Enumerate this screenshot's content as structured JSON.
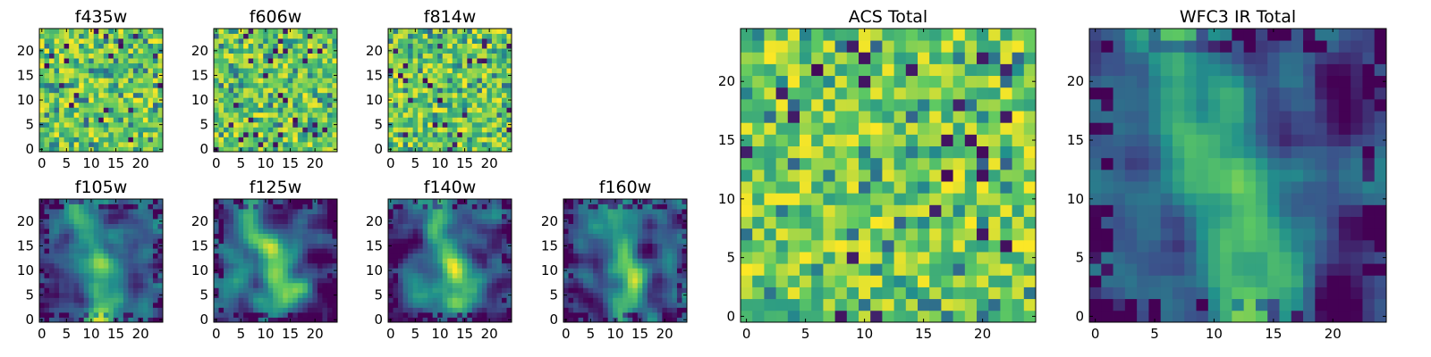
{
  "chart_data": [
    {
      "type": "heatmap",
      "title": "f435w",
      "grid": "24x24",
      "xlim": [
        0,
        24
      ],
      "ylim": [
        0,
        24
      ],
      "xticks": [
        0,
        5,
        10,
        15,
        20
      ],
      "yticks": [
        0,
        5,
        10,
        15,
        20
      ],
      "pattern": "noise",
      "seed": 11
    },
    {
      "type": "heatmap",
      "title": "f606w",
      "grid": "24x24",
      "xlim": [
        0,
        24
      ],
      "ylim": [
        0,
        24
      ],
      "xticks": [
        0,
        5,
        10,
        15,
        20
      ],
      "yticks": [
        0,
        5,
        10,
        15,
        20
      ],
      "pattern": "noise",
      "seed": 23
    },
    {
      "type": "heatmap",
      "title": "f814w",
      "grid": "24x24",
      "xlim": [
        0,
        24
      ],
      "ylim": [
        0,
        24
      ],
      "xticks": [
        0,
        5,
        10,
        15,
        20
      ],
      "yticks": [
        0,
        5,
        10,
        15,
        20
      ],
      "pattern": "noise",
      "seed": 37
    },
    {
      "type": "heatmap",
      "title": "f105w",
      "grid": "24x24",
      "xlim": [
        0,
        24
      ],
      "ylim": [
        0,
        24
      ],
      "xticks": [
        0,
        5,
        10,
        15,
        20
      ],
      "yticks": [
        0,
        5,
        10,
        15,
        20
      ],
      "pattern": "smooth",
      "seed": 41
    },
    {
      "type": "heatmap",
      "title": "f125w",
      "grid": "24x24",
      "xlim": [
        0,
        24
      ],
      "ylim": [
        0,
        24
      ],
      "xticks": [
        0,
        5,
        10,
        15,
        20
      ],
      "yticks": [
        0,
        5,
        10,
        15,
        20
      ],
      "pattern": "smooth",
      "seed": 53
    },
    {
      "type": "heatmap",
      "title": "f140w",
      "grid": "24x24",
      "xlim": [
        0,
        24
      ],
      "ylim": [
        0,
        24
      ],
      "xticks": [
        0,
        5,
        10,
        15,
        20
      ],
      "yticks": [
        0,
        5,
        10,
        15,
        20
      ],
      "pattern": "smooth",
      "seed": 67
    },
    {
      "type": "heatmap",
      "title": "f160w",
      "grid": "24x24",
      "xlim": [
        0,
        24
      ],
      "ylim": [
        0,
        24
      ],
      "xticks": [
        0,
        5,
        10,
        15,
        20
      ],
      "yticks": [
        0,
        5,
        10,
        15,
        20
      ],
      "pattern": "smooth",
      "seed": 79
    },
    {
      "type": "heatmap",
      "title": "ACS Total",
      "grid": "24x24",
      "xlim": [
        0,
        24
      ],
      "ylim": [
        0,
        24
      ],
      "xticks": [
        0,
        5,
        10,
        15,
        20
      ],
      "yticks": [
        0,
        5,
        10,
        15,
        20
      ],
      "pattern": "noise",
      "seed": 97
    },
    {
      "type": "heatmap",
      "title": "WFC3 IR Total",
      "grid": "24x24",
      "xlim": [
        0,
        24
      ],
      "ylim": [
        0,
        24
      ],
      "xticks": [
        0,
        5,
        10,
        15,
        20
      ],
      "yticks": [
        0,
        5,
        10,
        15,
        20
      ],
      "pattern": "smooth",
      "seed": 131
    }
  ],
  "colormap": {
    "name": "viridis-upper",
    "stops": [
      "#440154",
      "#3b528b",
      "#21918c",
      "#5ec962",
      "#fde725"
    ]
  }
}
